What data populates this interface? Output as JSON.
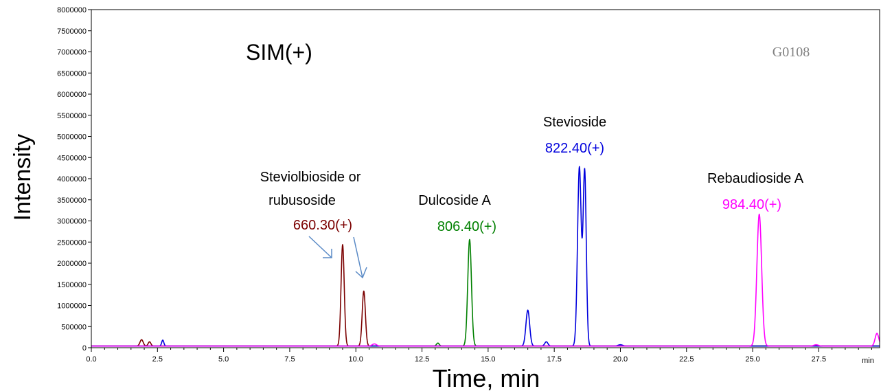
{
  "chart_data": {
    "type": "line",
    "title": "SIM(+)",
    "watermark": "G0108",
    "xlabel": "Time, min",
    "ylabel": "Intensity",
    "xlim": [
      0,
      29.8
    ],
    "ylim": [
      0,
      8000000
    ],
    "x_unit_label": "min",
    "x_ticks": [
      "0.0",
      "2.5",
      "5.0",
      "7.5",
      "10.0",
      "12.5",
      "15.0",
      "17.5",
      "20.0",
      "22.5",
      "25.0",
      "27.5"
    ],
    "y_ticks": [
      "0",
      "500000",
      "1000000",
      "1500000",
      "2000000",
      "2500000",
      "3000000",
      "3500000",
      "4000000",
      "4500000",
      "5000000",
      "5500000",
      "6000000",
      "6500000",
      "7000000",
      "7500000",
      "8000000"
    ],
    "grid": false,
    "baseline": 40000,
    "series": [
      {
        "name": "660.30(+)",
        "color": "#7B0000",
        "peaks": [
          [
            1.9,
            150000,
            0.06
          ],
          [
            2.2,
            100000,
            0.05
          ],
          [
            9.5,
            2400000,
            0.06
          ],
          [
            10.3,
            1300000,
            0.06
          ]
        ]
      },
      {
        "name": "806.40(+)",
        "color": "#008000",
        "peaks": [
          [
            13.1,
            70000,
            0.05
          ],
          [
            14.3,
            2520000,
            0.07
          ]
        ]
      },
      {
        "name": "822.40(+)",
        "color": "#0000DD",
        "peaks": [
          [
            2.7,
            140000,
            0.04
          ],
          [
            16.5,
            850000,
            0.07
          ],
          [
            17.2,
            100000,
            0.06
          ],
          [
            18.45,
            4230000,
            0.07
          ],
          [
            18.65,
            4130000,
            0.06
          ],
          [
            20.0,
            30000,
            0.08
          ]
        ]
      },
      {
        "name": "984.40(+)",
        "color": "#FF00FF",
        "peaks": [
          [
            10.7,
            50000,
            0.08
          ],
          [
            25.25,
            3120000,
            0.09
          ],
          [
            27.4,
            30000,
            0.08
          ],
          [
            29.7,
            300000,
            0.07
          ]
        ]
      }
    ],
    "annotations": [
      {
        "text": "Steviolbioside or",
        "color": "#000000"
      },
      {
        "text": "rubusoside",
        "color": "#000000"
      },
      {
        "text": "660.30(+)",
        "color": "#7B0000"
      },
      {
        "text": "Dulcoside A",
        "color": "#000000"
      },
      {
        "text": "806.40(+)",
        "color": "#008000"
      },
      {
        "text": "Stevioside",
        "color": "#000000"
      },
      {
        "text": "822.40(+)",
        "color": "#0000DD"
      },
      {
        "text": "Rebaudioside A",
        "color": "#000000"
      },
      {
        "text": "984.40(+)",
        "color": "#FF00FF"
      }
    ]
  }
}
